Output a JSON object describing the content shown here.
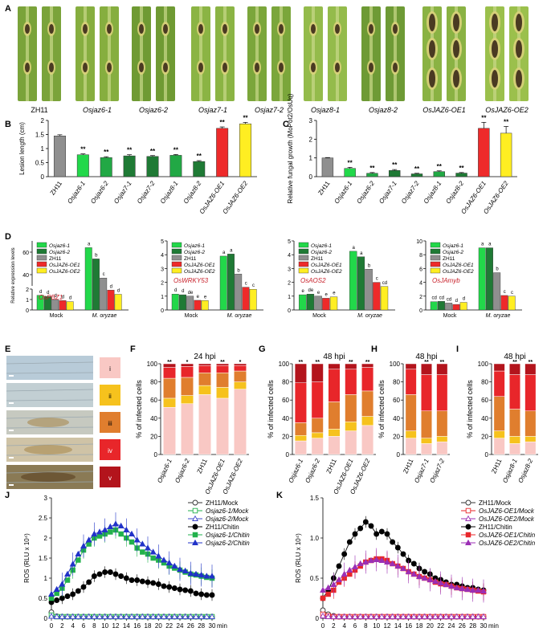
{
  "panel_labels": [
    "A",
    "B",
    "C",
    "D",
    "E",
    "F",
    "G",
    "H",
    "I",
    "J",
    "K"
  ],
  "panelA": {
    "lines": [
      "ZH11",
      "Osjaz6-1",
      "Osjaz6-2",
      "Osjaz7-1",
      "Osjaz7-2",
      "Osjaz8-1",
      "Osjaz8-2",
      "OsJAZ6-OE1",
      "OsJAZ6-OE2"
    ]
  },
  "colors": {
    "ZH11": "#8f8f8f",
    "light_green": "#22d84a",
    "mid_green": "#22a845",
    "dark_green": "#1f7a35",
    "OE1": "#ee2a2a",
    "OE2": "#ffee22",
    "mock_line": "#222222"
  },
  "chart_data": [
    {
      "id": "B",
      "type": "bar",
      "title": "",
      "ylabel": "Lesion length (cm)",
      "ylim": [
        0,
        2
      ],
      "yticks": [
        "0",
        "0.5",
        "1",
        "1.5",
        "2"
      ],
      "categories": [
        "ZH11",
        "Osjaz6-1",
        "Osjaz6-2",
        "Osjaz7-1",
        "Osjaz7-2",
        "Osjaz8-1",
        "Osjaz8-2",
        "OsJAZ6-OE1",
        "OsJAZ6-OE2"
      ],
      "values": [
        1.45,
        0.78,
        0.68,
        0.74,
        0.72,
        0.76,
        0.54,
        1.72,
        1.88
      ],
      "errors": [
        0.04,
        0.03,
        0.03,
        0.04,
        0.03,
        0.03,
        0.03,
        0.05,
        0.05
      ],
      "sig": [
        "",
        "**",
        "**",
        "**",
        "**",
        "**",
        "**",
        "**",
        "**"
      ]
    },
    {
      "id": "C",
      "type": "bar",
      "ylabel": "Relative fungal growth (MoPot2/OsUq)",
      "ylim": [
        0,
        3
      ],
      "yticks": [
        "0",
        "1",
        "2",
        "3"
      ],
      "categories": [
        "ZH11",
        "Osjaz6-1",
        "Osjaz6-2",
        "Osjaz7-1",
        "Osjaz7-2",
        "Osjaz8-1",
        "Osjaz8-2",
        "OsJAZ6-OE1",
        "OsJAZ6-OE2"
      ],
      "values": [
        1.0,
        0.44,
        0.18,
        0.33,
        0.15,
        0.27,
        0.19,
        2.58,
        2.32
      ],
      "errors": [
        0.02,
        0.06,
        0.04,
        0.05,
        0.03,
        0.04,
        0.03,
        0.32,
        0.36
      ],
      "sig": [
        "",
        "**",
        "**",
        "**",
        "**",
        "**",
        "**",
        "**",
        "**"
      ]
    },
    {
      "id": "D1",
      "type": "bar",
      "gene": "OsPBZ1",
      "ylabel": "Relative expression levels",
      "groups": [
        "Mock",
        "M. oryzae"
      ],
      "series_names": [
        "Osjaz6-1",
        "Osjaz6-2",
        "ZH11",
        "OsJAZ6-OE1",
        "OsJAZ6-OE2"
      ],
      "ylim_lower": [
        0,
        2
      ],
      "ylim_upper": [
        30,
        70
      ],
      "yticks_lower": [
        "0",
        "1",
        "2"
      ],
      "yticks_upper": [
        "40",
        "60"
      ],
      "values": [
        [
          1.4,
          1.3,
          1.0,
          0.9,
          0.8
        ],
        [
          64,
          54,
          37,
          1.9,
          1.5
        ]
      ],
      "letters": [
        [
          "d",
          "d",
          "d",
          "d",
          "d"
        ],
        [
          "a",
          "b",
          "c",
          "d",
          "d"
        ]
      ]
    },
    {
      "id": "D2",
      "type": "bar",
      "gene": "OsWRKY53",
      "groups": [
        "Mock",
        "M. oryzae"
      ],
      "series_names": [
        "Osjaz6-1",
        "Osjaz6-2",
        "ZH11",
        "OsJAZ6-OE1",
        "OsJAZ6-OE2"
      ],
      "ylim": [
        0,
        5
      ],
      "yticks": [
        "0",
        "1",
        "2",
        "3",
        "4",
        "5"
      ],
      "values": [
        [
          1.15,
          1.1,
          1.0,
          0.7,
          0.68
        ],
        [
          3.9,
          4.05,
          2.6,
          1.65,
          1.5
        ]
      ],
      "letters": [
        [
          "d",
          "d",
          "de",
          "e",
          "e"
        ],
        [
          "a",
          "a",
          "b",
          "c",
          "c"
        ]
      ]
    },
    {
      "id": "D3",
      "type": "bar",
      "gene": "OsAOS2",
      "groups": [
        "Mock",
        "M. oryzae"
      ],
      "series_names": [
        "Osjaz6-1",
        "Osjaz6-2",
        "ZH11",
        "OsJAZ6-OE1",
        "OsJAZ6-OE2"
      ],
      "ylim": [
        0,
        5
      ],
      "yticks": [
        "0",
        "1",
        "2",
        "3",
        "4",
        "5"
      ],
      "values": [
        [
          1.1,
          1.15,
          1.0,
          0.85,
          0.95
        ],
        [
          4.25,
          3.85,
          2.95,
          2.0,
          1.7
        ]
      ],
      "letters": [
        [
          "e",
          "de",
          "e",
          "e",
          "e"
        ],
        [
          "a",
          "a",
          "b",
          "c",
          "cd"
        ]
      ]
    },
    {
      "id": "D4",
      "type": "bar",
      "gene": "OsJAmyb",
      "groups": [
        "Mock",
        "M. oryzae"
      ],
      "series_names": [
        "Osjaz6-1",
        "Osjaz6-2",
        "ZH11",
        "OsJAZ6-OE1",
        "OsJAZ6-OE2"
      ],
      "ylim": [
        0,
        10
      ],
      "yticks": [
        "0",
        "2",
        "4",
        "6",
        "8",
        "10"
      ],
      "values": [
        [
          1.2,
          1.25,
          1.0,
          0.8,
          1.1
        ],
        [
          9.0,
          9.0,
          5.4,
          2.1,
          2.0
        ]
      ],
      "letters": [
        [
          "cd",
          "cd",
          "cd",
          "d",
          "d"
        ],
        [
          "a",
          "a",
          "b",
          "c",
          "c"
        ]
      ]
    },
    {
      "id": "E",
      "type": "legend-images",
      "classes": [
        "i",
        "ii",
        "iii",
        "iv",
        "v"
      ],
      "class_colors": [
        "#f9c8c4",
        "#f6c21d",
        "#e07e2e",
        "#e8262a",
        "#b3141c"
      ]
    },
    {
      "id": "F",
      "type": "stacked-bar",
      "title": "24 hpi",
      "ylabel": "% of infected cells",
      "ylim": [
        0,
        100
      ],
      "yticks": [
        "0",
        "20",
        "40",
        "60",
        "80",
        "100"
      ],
      "categories": [
        "Osjaz6-1",
        "Osjaz6-2",
        "ZH11",
        "OsJAZ6-OE1",
        "OsJAZ6-OE2"
      ],
      "sig": [
        "**",
        "*",
        "",
        "**",
        "*"
      ],
      "class_values": [
        [
          52,
          10,
          22,
          12,
          4
        ],
        [
          56,
          9,
          20,
          12,
          3
        ],
        [
          66,
          10,
          14,
          8,
          2
        ],
        [
          62,
          12,
          16,
          8,
          2
        ],
        [
          72,
          8,
          12,
          6,
          2
        ]
      ]
    },
    {
      "id": "G",
      "type": "stacked-bar",
      "title": "48 hpi",
      "ylabel": "% of infected cells",
      "ylim": [
        0,
        100
      ],
      "yticks": [
        "0",
        "20",
        "40",
        "60",
        "80",
        "100"
      ],
      "categories": [
        "Osjaz6-1",
        "Osjaz6-2",
        "ZH11",
        "OsJAZ6-OE1",
        "OsJAZ6-OE2"
      ],
      "sig": [
        "**",
        "**",
        "",
        "**",
        "**"
      ],
      "class_values": [
        [
          15,
          6,
          14,
          44,
          21
        ],
        [
          18,
          6,
          16,
          40,
          20
        ],
        [
          20,
          8,
          30,
          36,
          6
        ],
        [
          26,
          10,
          30,
          28,
          6
        ],
        [
          32,
          10,
          28,
          26,
          4
        ]
      ]
    },
    {
      "id": "H",
      "type": "stacked-bar",
      "title": "48 hpi",
      "ylabel": "% of infected cells",
      "ylim": [
        0,
        100
      ],
      "yticks": [
        "0",
        "20",
        "40",
        "60",
        "80",
        "100"
      ],
      "categories": [
        "ZH11",
        "Osjaz7-1",
        "Osjaz7-2"
      ],
      "sig": [
        "",
        "**",
        "**"
      ],
      "class_values": [
        [
          18,
          8,
          40,
          28,
          6
        ],
        [
          12,
          6,
          30,
          40,
          12
        ],
        [
          14,
          6,
          28,
          40,
          12
        ]
      ]
    },
    {
      "id": "I",
      "type": "stacked-bar",
      "title": "48 hpi",
      "ylabel": "% of infected cells",
      "ylim": [
        0,
        100
      ],
      "yticks": [
        "0",
        "20",
        "40",
        "60",
        "80",
        "100"
      ],
      "categories": [
        "ZH11",
        "Osjaz8-1",
        "Osjaz8-2"
      ],
      "sig": [
        "",
        "**",
        "**"
      ],
      "class_values": [
        [
          18,
          8,
          38,
          28,
          8
        ],
        [
          12,
          8,
          30,
          38,
          12
        ],
        [
          14,
          6,
          28,
          40,
          12
        ]
      ]
    },
    {
      "id": "J",
      "type": "line",
      "ylabel": "ROS (RLU x 10⁴)",
      "xlabel": "min",
      "x": [
        0,
        1,
        2,
        3,
        4,
        5,
        6,
        7,
        8,
        9,
        10,
        11,
        12,
        13,
        14,
        15,
        16,
        17,
        18,
        19,
        20,
        21,
        22,
        23,
        24,
        25,
        26,
        27,
        28,
        29,
        30
      ],
      "ylim": [
        0,
        3
      ],
      "yticks": [
        "0",
        "0.5",
        "1",
        "1.5",
        "2",
        "2.5",
        "3"
      ],
      "xticks": [
        "0",
        "2",
        "4",
        "6",
        "8",
        "10",
        "12",
        "14",
        "16",
        "18",
        "20",
        "22",
        "24",
        "26",
        "28",
        "30"
      ],
      "series": [
        {
          "name": "ZH11/Mock",
          "marker": "open-circle",
          "color": "#333333",
          "values": [
            0.15,
            0.05,
            0.04,
            0.04,
            0.04,
            0.04,
            0.04,
            0.04,
            0.04,
            0.04,
            0.04,
            0.04,
            0.04,
            0.04,
            0.04,
            0.04,
            0.04,
            0.04,
            0.04,
            0.04,
            0.04,
            0.04,
            0.04,
            0.04,
            0.04,
            0.04,
            0.04,
            0.04,
            0.04,
            0.04,
            0.04
          ]
        },
        {
          "name": "Osjaz6-1/Mock",
          "marker": "open-square",
          "color": "#22b14c",
          "values": [
            0.08,
            0.04,
            0.04,
            0.04,
            0.04,
            0.04,
            0.04,
            0.04,
            0.04,
            0.04,
            0.04,
            0.04,
            0.04,
            0.04,
            0.04,
            0.04,
            0.04,
            0.04,
            0.04,
            0.04,
            0.04,
            0.04,
            0.04,
            0.04,
            0.04,
            0.04,
            0.04,
            0.04,
            0.04,
            0.04,
            0.04
          ]
        },
        {
          "name": "Osjaz6-2/Mock",
          "marker": "open-triangle",
          "color": "#3f48cc",
          "values": [
            0.05,
            0.04,
            0.04,
            0.04,
            0.04,
            0.04,
            0.04,
            0.04,
            0.04,
            0.04,
            0.04,
            0.04,
            0.04,
            0.04,
            0.04,
            0.04,
            0.04,
            0.04,
            0.04,
            0.04,
            0.04,
            0.04,
            0.04,
            0.04,
            0.04,
            0.04,
            0.04,
            0.04,
            0.04,
            0.04,
            0.04
          ]
        },
        {
          "name": "ZH11/Chitin",
          "marker": "filled-circle",
          "color": "#000000",
          "values": [
            0.4,
            0.45,
            0.5,
            0.55,
            0.6,
            0.68,
            0.78,
            0.9,
            1.05,
            1.1,
            1.15,
            1.15,
            1.1,
            1.05,
            1.0,
            0.95,
            0.95,
            0.92,
            0.9,
            0.88,
            0.85,
            0.8,
            0.78,
            0.75,
            0.72,
            0.7,
            0.68,
            0.62,
            0.6,
            0.58,
            0.58
          ]
        },
        {
          "name": "Osjaz6-1/Chitin",
          "marker": "filled-square",
          "color": "#22b14c",
          "values": [
            0.5,
            0.62,
            0.75,
            0.95,
            1.2,
            1.45,
            1.7,
            1.85,
            2.0,
            2.05,
            2.1,
            2.15,
            2.2,
            2.1,
            2.0,
            1.9,
            1.75,
            1.65,
            1.6,
            1.5,
            1.45,
            1.38,
            1.3,
            1.25,
            1.2,
            1.15,
            1.1,
            1.08,
            1.05,
            1.02,
            1.0
          ]
        },
        {
          "name": "Osjaz6-2/Chitin",
          "marker": "filled-triangle",
          "color": "#2132c8",
          "values": [
            0.6,
            0.72,
            0.85,
            1.1,
            1.35,
            1.6,
            1.8,
            1.95,
            2.1,
            2.15,
            2.2,
            2.28,
            2.35,
            2.3,
            2.2,
            2.1,
            1.95,
            1.85,
            1.75,
            1.65,
            1.55,
            1.45,
            1.38,
            1.3,
            1.22,
            1.18,
            1.12,
            1.1,
            1.08,
            1.05,
            1.05
          ]
        }
      ]
    },
    {
      "id": "K",
      "type": "line",
      "ylabel": "ROS (RLU x 10⁴)",
      "xlabel": "min",
      "x": [
        0,
        1,
        2,
        3,
        4,
        5,
        6,
        7,
        8,
        9,
        10,
        11,
        12,
        13,
        14,
        15,
        16,
        17,
        18,
        19,
        20,
        21,
        22,
        23,
        24,
        25,
        26,
        27,
        28,
        29,
        30
      ],
      "ylim": [
        0,
        1.5
      ],
      "yticks": [
        "0",
        "0.5",
        "1.0",
        "1.5"
      ],
      "xticks": [
        "0",
        "2",
        "4",
        "6",
        "8",
        "10",
        "12",
        "14",
        "16",
        "18",
        "20",
        "22",
        "24",
        "26",
        "28",
        "30"
      ],
      "series": [
        {
          "name": "ZH11/Mock",
          "marker": "open-circle",
          "color": "#333333",
          "values": [
            0.1,
            0.05,
            0.03,
            0.02,
            0.02,
            0.02,
            0.02,
            0.02,
            0.02,
            0.02,
            0.02,
            0.02,
            0.02,
            0.02,
            0.02,
            0.02,
            0.02,
            0.02,
            0.02,
            0.02,
            0.02,
            0.02,
            0.02,
            0.02,
            0.02,
            0.02,
            0.02,
            0.02,
            0.02,
            0.02,
            0.02
          ]
        },
        {
          "name": "OsJAZ6-OE1/Mock",
          "marker": "open-square",
          "color": "#e8262a",
          "values": [
            0.05,
            0.03,
            0.02,
            0.02,
            0.02,
            0.02,
            0.02,
            0.02,
            0.02,
            0.02,
            0.02,
            0.02,
            0.02,
            0.02,
            0.02,
            0.02,
            0.02,
            0.02,
            0.02,
            0.02,
            0.02,
            0.02,
            0.02,
            0.02,
            0.02,
            0.02,
            0.02,
            0.02,
            0.02,
            0.02,
            0.02
          ]
        },
        {
          "name": "OsJAZ6-OE2/Mock",
          "marker": "open-triangle",
          "color": "#9b2fb5",
          "values": [
            0.03,
            0.02,
            0.02,
            0.02,
            0.02,
            0.02,
            0.02,
            0.02,
            0.02,
            0.02,
            0.02,
            0.02,
            0.02,
            0.02,
            0.02,
            0.02,
            0.02,
            0.02,
            0.02,
            0.02,
            0.02,
            0.02,
            0.02,
            0.02,
            0.02,
            0.02,
            0.02,
            0.02,
            0.02,
            0.02,
            0.02
          ]
        },
        {
          "name": "ZH11/Chitin",
          "marker": "filled-circle",
          "color": "#000000",
          "values": [
            0.25,
            0.35,
            0.5,
            0.65,
            0.8,
            0.95,
            1.05,
            1.12,
            1.2,
            1.15,
            1.05,
            1.08,
            1.05,
            0.95,
            0.88,
            0.8,
            0.72,
            0.68,
            0.62,
            0.58,
            0.55,
            0.5,
            0.48,
            0.45,
            0.42,
            0.42,
            0.4,
            0.38,
            0.38,
            0.36,
            0.35
          ]
        },
        {
          "name": "OsJAZ6-OE1/Chitin",
          "marker": "filled-square",
          "color": "#e8262a",
          "values": [
            0.25,
            0.3,
            0.35,
            0.45,
            0.5,
            0.55,
            0.6,
            0.65,
            0.7,
            0.72,
            0.74,
            0.74,
            0.72,
            0.68,
            0.65,
            0.62,
            0.58,
            0.55,
            0.52,
            0.5,
            0.48,
            0.45,
            0.43,
            0.42,
            0.4,
            0.38,
            0.37,
            0.36,
            0.35,
            0.34,
            0.33
          ]
        },
        {
          "name": "OsJAZ6-OE2/Chitin",
          "marker": "filled-triangle",
          "color": "#9b2fb5",
          "values": [
            0.35,
            0.38,
            0.42,
            0.48,
            0.55,
            0.6,
            0.64,
            0.68,
            0.7,
            0.72,
            0.73,
            0.72,
            0.7,
            0.68,
            0.65,
            0.62,
            0.58,
            0.55,
            0.52,
            0.5,
            0.48,
            0.46,
            0.44,
            0.42,
            0.4,
            0.38,
            0.37,
            0.36,
            0.35,
            0.35,
            0.34
          ]
        }
      ]
    }
  ],
  "D_groups_label": [
    "Mock",
    "M. oryzae"
  ]
}
